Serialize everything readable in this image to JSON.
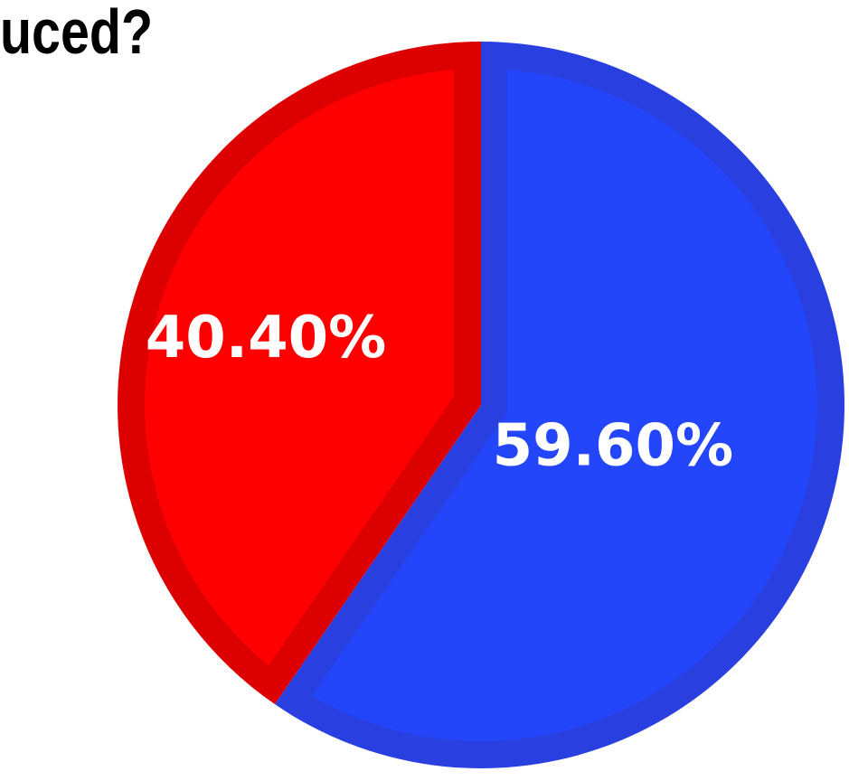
{
  "chart_data": {
    "type": "pie",
    "title": "uced?",
    "slices": [
      {
        "value": 59.6,
        "label": "59.60%",
        "color": "#2446fb",
        "edge": "#2a3fe0"
      },
      {
        "value": 40.4,
        "label": "40.40%",
        "color": "#ff0000",
        "edge": "#dc0000"
      }
    ],
    "label_color": "#ffffff",
    "background": "#ffffff"
  }
}
